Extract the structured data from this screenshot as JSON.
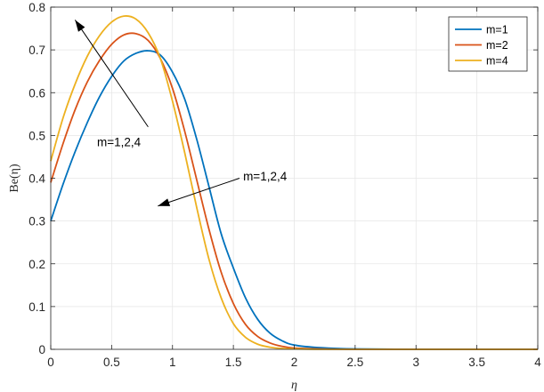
{
  "chart_data": {
    "type": "line",
    "xlabel": "η",
    "ylabel": "Be(η)",
    "xlim": [
      0,
      4
    ],
    "ylim": [
      0,
      0.8
    ],
    "xticks": [
      "0",
      "0.5",
      "1",
      "1.5",
      "2",
      "2.5",
      "3",
      "3.5",
      "4"
    ],
    "yticks": [
      "0",
      "0.1",
      "0.2",
      "0.3",
      "0.4",
      "0.5",
      "0.6",
      "0.7",
      "0.8"
    ],
    "grid": true,
    "legend_position": "top-right",
    "series": [
      {
        "name": "m=1",
        "color": "#0072BD",
        "x": [
          0,
          0.1,
          0.2,
          0.3,
          0.4,
          0.5,
          0.6,
          0.7,
          0.8,
          0.9,
          1.0,
          1.1,
          1.2,
          1.3,
          1.4,
          1.5,
          1.6,
          1.7,
          1.8,
          1.9,
          2.0,
          2.2,
          2.5,
          3.0,
          3.5,
          4.0
        ],
        "y": [
          0.3,
          0.385,
          0.462,
          0.53,
          0.59,
          0.638,
          0.674,
          0.692,
          0.698,
          0.688,
          0.648,
          0.585,
          0.49,
          0.38,
          0.27,
          0.19,
          0.12,
          0.07,
          0.038,
          0.02,
          0.01,
          0.004,
          0.001,
          0,
          0,
          0
        ]
      },
      {
        "name": "m=2",
        "color": "#D95319",
        "x": [
          0,
          0.1,
          0.2,
          0.3,
          0.4,
          0.5,
          0.6,
          0.7,
          0.8,
          0.9,
          1.0,
          1.1,
          1.2,
          1.3,
          1.4,
          1.5,
          1.6,
          1.7,
          1.8,
          1.9,
          2.0,
          2.2,
          2.5,
          3.0,
          3.5,
          4.0
        ],
        "y": [
          0.39,
          0.48,
          0.56,
          0.625,
          0.675,
          0.713,
          0.735,
          0.738,
          0.722,
          0.68,
          0.61,
          0.51,
          0.395,
          0.28,
          0.18,
          0.107,
          0.058,
          0.03,
          0.015,
          0.007,
          0.003,
          0.001,
          0,
          0,
          0,
          0
        ]
      },
      {
        "name": "m=4",
        "color": "#EDB120",
        "x": [
          0,
          0.1,
          0.2,
          0.3,
          0.4,
          0.5,
          0.6,
          0.7,
          0.8,
          0.9,
          1.0,
          1.1,
          1.2,
          1.3,
          1.4,
          1.5,
          1.6,
          1.7,
          1.8,
          1.9,
          2.0,
          2.2,
          2.5,
          3.0,
          3.5,
          4.0
        ],
        "y": [
          0.44,
          0.54,
          0.62,
          0.685,
          0.733,
          0.765,
          0.779,
          0.772,
          0.74,
          0.68,
          0.58,
          0.46,
          0.33,
          0.21,
          0.12,
          0.06,
          0.028,
          0.012,
          0.005,
          0.002,
          0.001,
          0,
          0,
          0,
          0,
          0
        ]
      }
    ],
    "annotations": [
      {
        "text": "m=1,2,4",
        "arrow_from": [
          0.8,
          0.52
        ],
        "arrow_to": [
          0.2,
          0.77
        ]
      },
      {
        "text": "m=1,2,4",
        "arrow_from": [
          1.55,
          0.4
        ],
        "arrow_to": [
          0.88,
          0.335
        ]
      }
    ]
  }
}
